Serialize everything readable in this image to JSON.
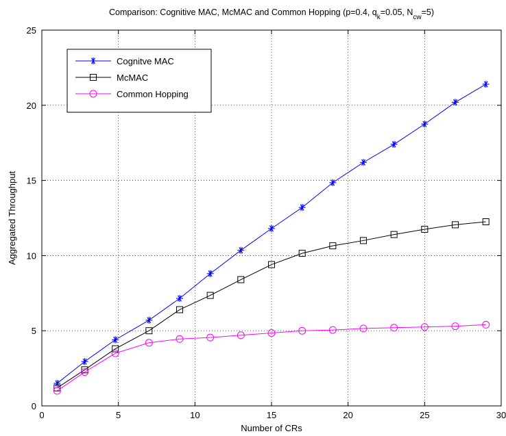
{
  "chart_data": {
    "type": "line",
    "title_parts": [
      {
        "text": "Comparison: Cognitive MAC, McMAC and Common Hopping (p=0.4, q",
        "shift": "none"
      },
      {
        "text": "k",
        "shift": "sub"
      },
      {
        "text": "=0.05, N",
        "shift": "none"
      },
      {
        "text": "cw",
        "shift": "sub"
      },
      {
        "text": "=5)",
        "shift": "none"
      }
    ],
    "xlabel": "Number of CRs",
    "ylabel": "Aggregated Throughput",
    "xlim": [
      0,
      30
    ],
    "ylim": [
      0,
      25
    ],
    "xticks": [
      0,
      5,
      10,
      15,
      20,
      25,
      30
    ],
    "yticks": [
      0,
      5,
      10,
      15,
      20,
      25
    ],
    "grid": true,
    "legend_position": "top-left",
    "series": [
      {
        "name": "Cognitve MAC",
        "color": "#0000ff",
        "marker": "asterisk",
        "x": [
          1,
          2.8,
          4.8,
          7,
          9,
          11,
          13,
          15,
          17,
          19,
          21,
          23,
          25,
          27,
          29
        ],
        "y": [
          1.5,
          2.95,
          4.4,
          5.7,
          7.15,
          8.8,
          10.35,
          11.8,
          13.2,
          14.85,
          16.2,
          17.4,
          18.75,
          20.2,
          21.4
        ]
      },
      {
        "name": "McMAC",
        "color": "#000000",
        "marker": "square",
        "x": [
          1,
          2.8,
          4.8,
          7,
          9,
          11,
          13,
          15,
          17,
          19,
          21,
          23,
          25,
          27,
          29
        ],
        "y": [
          1.2,
          2.4,
          3.8,
          5.0,
          6.4,
          7.35,
          8.4,
          9.4,
          10.15,
          10.65,
          11.0,
          11.4,
          11.75,
          12.05,
          12.25
        ]
      },
      {
        "name": "Common Hopping",
        "color": "#ff00ff",
        "marker": "circle",
        "x": [
          1,
          2.8,
          4.8,
          7,
          9,
          11,
          13,
          15,
          17,
          19,
          21,
          23,
          25,
          27,
          29
        ],
        "y": [
          1.0,
          2.25,
          3.5,
          4.2,
          4.45,
          4.55,
          4.7,
          4.85,
          5.0,
          5.05,
          5.15,
          5.2,
          5.25,
          5.3,
          5.4
        ]
      }
    ]
  }
}
